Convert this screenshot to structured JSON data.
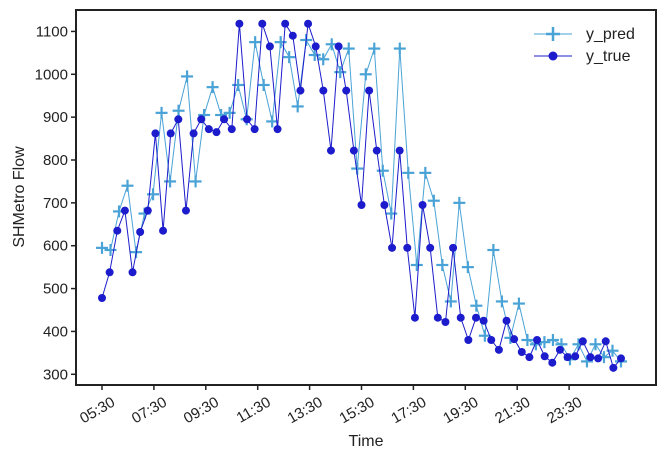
{
  "chart_data": {
    "type": "line",
    "xlabel": "Time",
    "ylabel": "SHMetro Flow",
    "xlim": [
      0,
      76
    ],
    "ylim": [
      275,
      1150
    ],
    "yticks": [
      300,
      400,
      500,
      600,
      700,
      800,
      900,
      1000,
      1100
    ],
    "xticks": [
      {
        "index": 0,
        "label": "05:30"
      },
      {
        "index": 6,
        "label": "07:30"
      },
      {
        "index": 12,
        "label": "09:30"
      },
      {
        "index": 18,
        "label": "11:30"
      },
      {
        "index": 24,
        "label": "13:30"
      },
      {
        "index": 30,
        "label": "15:30"
      },
      {
        "index": 36,
        "label": "17:30"
      },
      {
        "index": 42,
        "label": "19:30"
      },
      {
        "index": 48,
        "label": "21:30"
      },
      {
        "index": 54,
        "label": "23:30"
      }
    ],
    "legend_position": "top-right",
    "series": [
      {
        "name": "y_pred",
        "color": "#4aa3d6",
        "marker": "plus",
        "values": [
          595,
          590,
          680,
          740,
          585,
          675,
          720,
          910,
          750,
          915,
          995,
          750,
          905,
          970,
          905,
          910,
          975,
          895,
          1075,
          975,
          890,
          1075,
          1040,
          925,
          1080,
          1045,
          1035,
          1070,
          1005,
          1060,
          780,
          1000,
          1060,
          775,
          675,
          1060,
          770,
          555,
          770,
          705,
          555,
          470,
          700,
          550,
          460,
          390,
          590,
          470,
          385,
          465,
          380,
          370,
          375,
          380,
          370,
          335,
          370,
          330,
          370,
          340,
          355,
          330
        ],
        "x_start": 0
      },
      {
        "name": "y_true",
        "color": "#1c1ccc",
        "marker": "circle",
        "values": [
          478,
          538,
          635,
          682,
          538,
          632,
          682,
          862,
          635,
          862,
          895,
          682,
          862,
          895,
          872,
          865,
          895,
          872,
          1118,
          895,
          872,
          1118,
          1065,
          872,
          1118,
          1090,
          962,
          1118,
          1065,
          962,
          822,
          1065,
          962,
          822,
          695,
          962,
          822,
          695,
          595,
          822,
          595,
          432,
          695,
          595,
          432,
          422,
          595,
          432,
          380,
          432,
          425,
          380,
          357,
          425,
          382,
          352,
          340,
          380,
          342,
          327,
          357,
          340,
          342,
          377,
          340,
          337,
          377,
          315,
          337
        ],
        "x_start": 0
      }
    ]
  }
}
